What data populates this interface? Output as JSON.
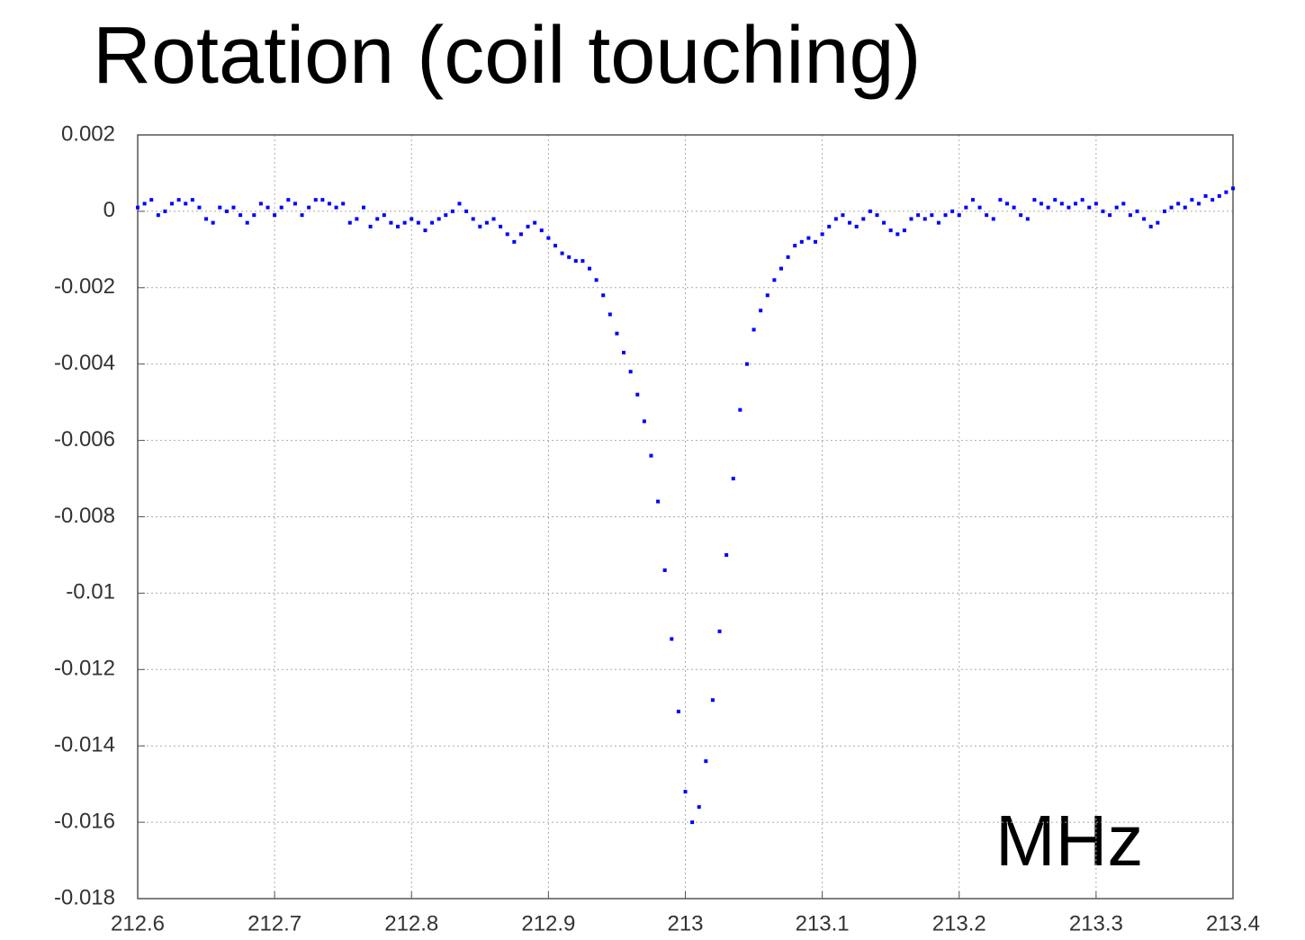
{
  "chart_data": {
    "type": "scatter",
    "title": "Rotation (coil touching)",
    "annotation": "MHz",
    "color": "#0000ff",
    "grid": true,
    "xlim": [
      212.6,
      213.4
    ],
    "xticks": [
      212.6,
      212.7,
      212.8,
      212.9,
      213,
      213.1,
      213.2,
      213.3,
      213.4
    ],
    "ylim": [
      -0.018,
      0.002
    ],
    "yticks": [
      0.002,
      0,
      -0.002,
      -0.004,
      -0.006,
      -0.008,
      -0.01,
      -0.012,
      -0.014,
      -0.016,
      -0.018
    ],
    "x": [
      212.6,
      212.605,
      212.61,
      212.615,
      212.62,
      212.625,
      212.63,
      212.635,
      212.64,
      212.645,
      212.65,
      212.655,
      212.66,
      212.665,
      212.67,
      212.675,
      212.68,
      212.685,
      212.69,
      212.695,
      212.7,
      212.705,
      212.71,
      212.715,
      212.72,
      212.725,
      212.73,
      212.735,
      212.74,
      212.745,
      212.75,
      212.755,
      212.76,
      212.765,
      212.77,
      212.775,
      212.78,
      212.785,
      212.79,
      212.795,
      212.8,
      212.805,
      212.81,
      212.815,
      212.82,
      212.825,
      212.83,
      212.835,
      212.84,
      212.845,
      212.85,
      212.855,
      212.86,
      212.865,
      212.87,
      212.875,
      212.88,
      212.885,
      212.89,
      212.895,
      212.9,
      212.905,
      212.91,
      212.915,
      212.92,
      212.925,
      212.93,
      212.935,
      212.94,
      212.945,
      212.95,
      212.955,
      212.96,
      212.965,
      212.97,
      212.975,
      212.98,
      212.985,
      212.99,
      212.995,
      213,
      213.005,
      213.01,
      213.015,
      213.02,
      213.025,
      213.03,
      213.035,
      213.04,
      213.045,
      213.05,
      213.055,
      213.06,
      213.065,
      213.07,
      213.075,
      213.08,
      213.085,
      213.09,
      213.095,
      213.1,
      213.105,
      213.11,
      213.115,
      213.12,
      213.125,
      213.13,
      213.135,
      213.14,
      213.145,
      213.15,
      213.155,
      213.16,
      213.165,
      213.17,
      213.175,
      213.18,
      213.185,
      213.19,
      213.195,
      213.2,
      213.205,
      213.21,
      213.215,
      213.22,
      213.225,
      213.23,
      213.235,
      213.24,
      213.245,
      213.25,
      213.255,
      213.26,
      213.265,
      213.27,
      213.275,
      213.28,
      213.285,
      213.29,
      213.295,
      213.3,
      213.305,
      213.31,
      213.315,
      213.32,
      213.325,
      213.33,
      213.335,
      213.34,
      213.345,
      213.35,
      213.355,
      213.36,
      213.365,
      213.37,
      213.375,
      213.38,
      213.385,
      213.39,
      213.395,
      213.4
    ],
    "values": [
      0.0001,
      0.0002,
      0.0003,
      -0.0001,
      0,
      0.0002,
      0.0003,
      0.0002,
      0.0003,
      0.0001,
      -0.0002,
      -0.0003,
      0.0001,
      0,
      0.0001,
      -0.0001,
      -0.0003,
      -0.0001,
      0.0002,
      0.0001,
      -0.0001,
      0.0001,
      0.0003,
      0.0002,
      -0.0001,
      0.0001,
      0.0003,
      0.0003,
      0.0002,
      0.0001,
      0.0002,
      -0.0003,
      -0.0002,
      0.0001,
      -0.0004,
      -0.0002,
      -0.0001,
      -0.0003,
      -0.0004,
      -0.0003,
      -0.0002,
      -0.0003,
      -0.0005,
      -0.0003,
      -0.0002,
      -0.0001,
      0,
      0.0002,
      0,
      -0.0002,
      -0.0004,
      -0.0003,
      -0.0002,
      -0.0004,
      -0.0006,
      -0.0008,
      -0.0006,
      -0.0004,
      -0.0003,
      -0.0005,
      -0.0007,
      -0.0009,
      -0.0011,
      -0.0012,
      -0.0013,
      -0.0013,
      -0.0015,
      -0.0018,
      -0.0022,
      -0.0027,
      -0.0032,
      -0.0037,
      -0.0042,
      -0.0048,
      -0.0055,
      -0.0064,
      -0.0076,
      -0.0094,
      -0.0112,
      -0.0131,
      -0.0152,
      -0.016,
      -0.0156,
      -0.0144,
      -0.0128,
      -0.011,
      -0.009,
      -0.007,
      -0.0052,
      -0.004,
      -0.0031,
      -0.0026,
      -0.0022,
      -0.0018,
      -0.0015,
      -0.0012,
      -0.0009,
      -0.0008,
      -0.0007,
      -0.0008,
      -0.0006,
      -0.0004,
      -0.0002,
      -0.0001,
      -0.0003,
      -0.0004,
      -0.0002,
      0,
      -0.0001,
      -0.0003,
      -0.0005,
      -0.0006,
      -0.0005,
      -0.0002,
      -0.0001,
      -0.0002,
      -0.0001,
      -0.0003,
      -0.0001,
      0,
      -0.0001,
      0.0001,
      0.0003,
      0.0001,
      -0.0001,
      -0.0002,
      0.0003,
      0.0002,
      0.0001,
      -0.0001,
      -0.0002,
      0.0003,
      0.0002,
      0.0001,
      0.0003,
      0.0002,
      0.0001,
      0.0002,
      0.0003,
      0.0001,
      0.0002,
      0,
      -0.0001,
      0.0001,
      0.0002,
      -0.0001,
      0,
      -0.0002,
      -0.0004,
      -0.0003,
      0,
      0.0001,
      0.0002,
      0.0001,
      0.0003,
      0.0002,
      0.0004,
      0.0003,
      0.0004,
      0.0005,
      0.0006
    ]
  }
}
